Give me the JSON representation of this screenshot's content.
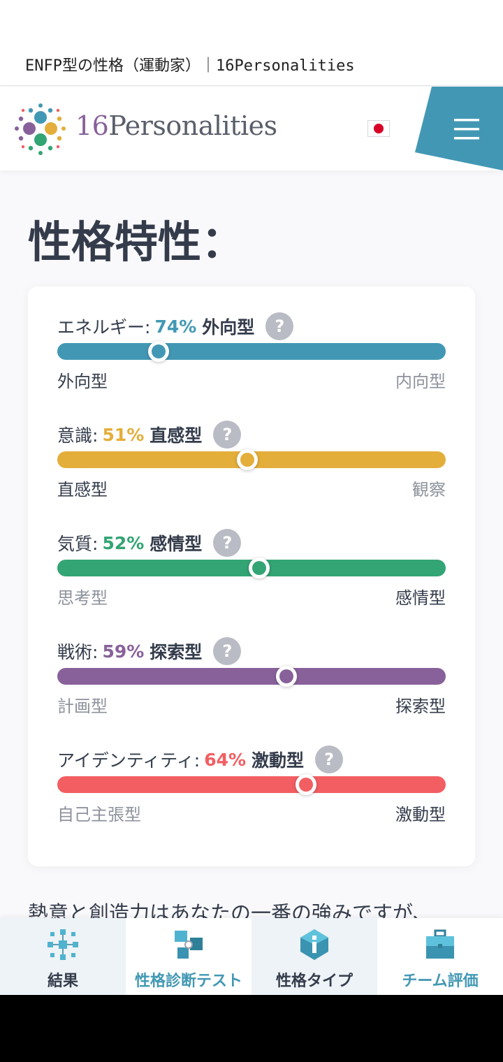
{
  "page_title": "ENFP型の性格（運動家）｜16Personalities",
  "header": {
    "brand_num": "16",
    "brand_text": "Personalities",
    "language_flag": "japan-flag"
  },
  "section_heading": "性格特性：",
  "traits": [
    {
      "label": "エネルギー:",
      "percent": "74%",
      "side": "外向型",
      "left": "外向型",
      "right": "内向型",
      "active": "left",
      "position": 0.26,
      "color": "#4298b4"
    },
    {
      "label": "意識:",
      "percent": "51%",
      "side": "直感型",
      "left": "直感型",
      "right": "観察",
      "active": "left",
      "position": 0.49,
      "color": "#e4ae3a"
    },
    {
      "label": "気質:",
      "percent": "52%",
      "side": "感情型",
      "left": "思考型",
      "right": "感情型",
      "active": "right",
      "position": 0.52,
      "color": "#33a474"
    },
    {
      "label": "戦術:",
      "percent": "59%",
      "side": "探索型",
      "left": "計画型",
      "right": "探索型",
      "active": "right",
      "position": 0.59,
      "color": "#88619a"
    },
    {
      "label": "アイデンティティ:",
      "percent": "64%",
      "side": "激動型",
      "left": "自己主張型",
      "right": "激動型",
      "active": "right",
      "position": 0.64,
      "color": "#f25e62"
    }
  ],
  "help_glyph": "?",
  "teaser": "熱意と創造力はあなたの一番の強みですが、",
  "bottom_nav": [
    {
      "label": "結果",
      "icon": "cubes-icon"
    },
    {
      "label": "性格診断テスト",
      "icon": "test-puzzle-icon"
    },
    {
      "label": "性格タイプ",
      "icon": "info-gem-icon"
    },
    {
      "label": "チーム評価",
      "icon": "briefcase-icon"
    }
  ]
}
